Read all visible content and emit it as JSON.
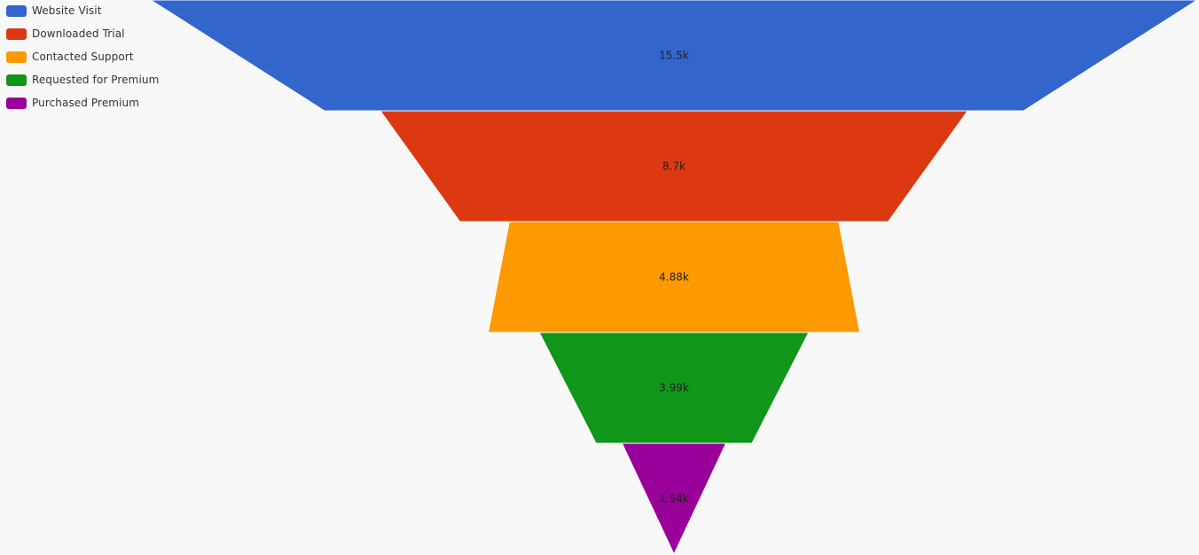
{
  "chart_data": {
    "type": "funnel",
    "stages": [
      {
        "name": "Website Visit",
        "value": 15500,
        "label": "15.5k",
        "color": "#3366cc"
      },
      {
        "name": "Downloaded Trial",
        "value": 8700,
        "label": "8.7k",
        "color": "#dc3912"
      },
      {
        "name": "Contacted Support",
        "value": 4880,
        "label": "4.88k",
        "color": "#ff9900"
      },
      {
        "name": "Requested for Premium",
        "value": 3990,
        "label": "3.99k",
        "color": "#109618"
      },
      {
        "name": "Purchased Premium",
        "value": 1540,
        "label": "1.54k",
        "color": "#990099"
      }
    ],
    "legend_position": "top-left",
    "segment_border_color": "#ffffff"
  }
}
